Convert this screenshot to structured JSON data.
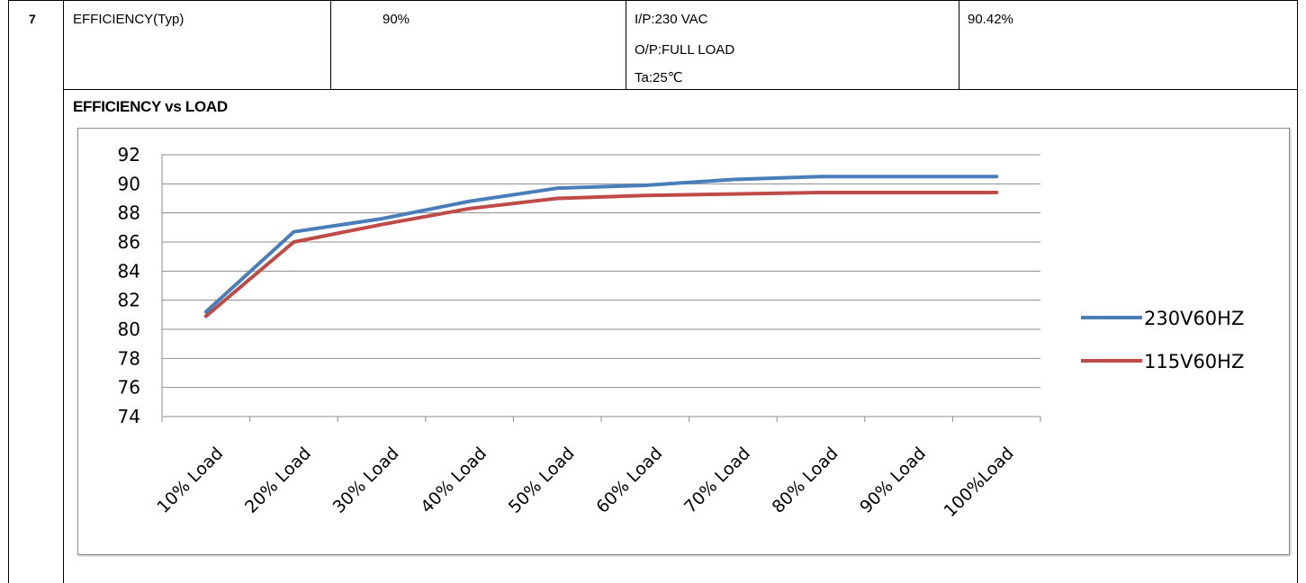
{
  "spec_row": {
    "number": "7",
    "item": "EFFICIENCY(Typ)",
    "spec": "90%",
    "conditions": [
      "I/P:230 VAC",
      "O/P:FULL LOAD",
      "Ta:25℃"
    ],
    "result": "90.42%"
  },
  "section_title": "EFFICIENCY vs LOAD",
  "chart_data": {
    "type": "line",
    "title": "",
    "xlabel": "",
    "ylabel": "",
    "categories": [
      "10% Load",
      "20% Load",
      "30% Load",
      "40% Load",
      "50% Load",
      "60% Load",
      "70% Load",
      "80% Load",
      "90% Load",
      "100%Load"
    ],
    "ylim": [
      74,
      92
    ],
    "yticks": [
      "92",
      "90",
      "88",
      "86",
      "84",
      "82",
      "80",
      "78",
      "76",
      "74"
    ],
    "grid": true,
    "legend_position": "right",
    "series": [
      {
        "name": "230V60HZ",
        "color": "#4a7ebb",
        "values": [
          81.2,
          86.7,
          87.6,
          88.8,
          89.7,
          89.9,
          90.3,
          90.5,
          90.5,
          90.5
        ]
      },
      {
        "name": "115V60HZ",
        "color": "#be4b48",
        "values": [
          80.9,
          86.0,
          87.2,
          88.3,
          89.0,
          89.2,
          89.3,
          89.4,
          89.4,
          89.4
        ]
      }
    ]
  }
}
